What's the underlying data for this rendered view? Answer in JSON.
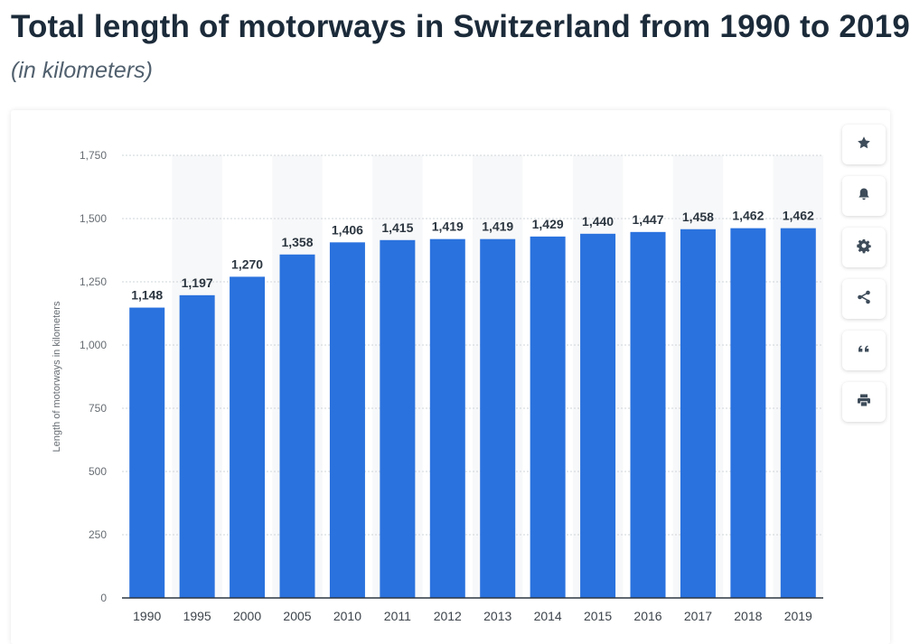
{
  "header": {
    "title": "Total length of motorways in Switzerland from 1990 to 2019",
    "subtitle": "(in kilometers)"
  },
  "toolbar": {
    "buttons": [
      {
        "icon": "star-icon"
      },
      {
        "icon": "bell-icon"
      },
      {
        "icon": "gear-icon"
      },
      {
        "icon": "share-icon"
      },
      {
        "icon": "quote-icon"
      },
      {
        "icon": "print-icon"
      }
    ]
  },
  "chart_data": {
    "type": "bar",
    "title": "",
    "xlabel": "",
    "ylabel": "Length of motorways in kilometers",
    "categories": [
      "1990",
      "1995",
      "2000",
      "2005",
      "2010",
      "2011",
      "2012",
      "2013",
      "2014",
      "2015",
      "2016",
      "2017",
      "2018",
      "2019"
    ],
    "values": [
      1148,
      1197,
      1270,
      1358,
      1406,
      1415,
      1419,
      1419,
      1429,
      1440,
      1447,
      1458,
      1462,
      1462
    ],
    "data_labels": [
      "1,148",
      "1,197",
      "1,270",
      "1,358",
      "1,406",
      "1,415",
      "1,419",
      "1,419",
      "1,429",
      "1,440",
      "1,447",
      "1,458",
      "1,462",
      "1,462"
    ],
    "ylim": [
      0,
      1750
    ],
    "yticks": [
      0,
      250,
      500,
      750,
      1000,
      1250,
      1500,
      1750
    ],
    "ytick_labels": [
      "0",
      "250",
      "500",
      "750",
      "1,000",
      "1,250",
      "1,500",
      "1,750"
    ],
    "grid": true,
    "bar_color": "#2a72de",
    "alt_column_band": "#f7f8f9"
  }
}
